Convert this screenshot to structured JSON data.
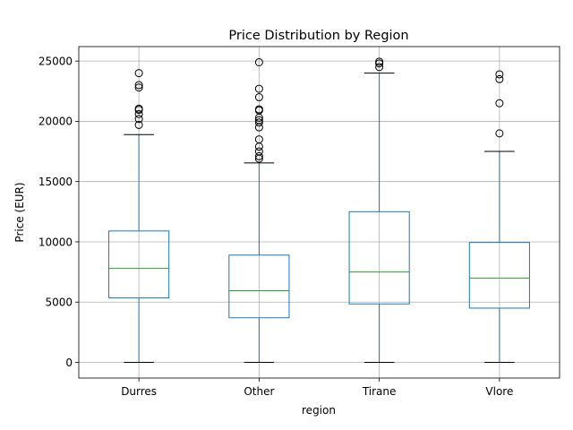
{
  "chart_data": {
    "type": "box",
    "title": "Price Distribution by Region",
    "xlabel": "region",
    "ylabel": "Price (EUR)",
    "ylim": [
      -1300,
      26200
    ],
    "yticks": [
      0,
      5000,
      10000,
      15000,
      20000,
      25000
    ],
    "grid": true,
    "categories": [
      "Durres",
      "Other",
      "Tirane",
      "Vlore"
    ],
    "boxes": [
      {
        "category": "Durres",
        "whisker_low": 0,
        "q1": 5350,
        "median": 7800,
        "q3": 10900,
        "whisker_high": 18900,
        "outliers": [
          19700,
          20200,
          20600,
          20950,
          21050,
          22800,
          23000,
          24000
        ]
      },
      {
        "category": "Other",
        "whisker_low": 0,
        "q1": 3700,
        "median": 5950,
        "q3": 8900,
        "whisker_high": 16550,
        "outliers": [
          16900,
          17100,
          17500,
          17900,
          18500,
          19500,
          19900,
          20100,
          20300,
          20900,
          21000,
          22000,
          22700,
          24900
        ]
      },
      {
        "category": "Tirane",
        "whisker_low": 0,
        "q1": 4850,
        "median": 7500,
        "q3": 12500,
        "whisker_high": 24000,
        "outliers": [
          24500,
          24800,
          24950
        ]
      },
      {
        "category": "Vlore",
        "whisker_low": 0,
        "q1": 4500,
        "median": 7000,
        "q3": 9950,
        "whisker_high": 17500,
        "outliers": [
          19000,
          21500,
          23500,
          23900
        ]
      }
    ],
    "colors": {
      "box": "#1f77b4",
      "median": "#2ca02c",
      "whisker": "#1f77b4",
      "cap": "#000000",
      "flier": "#000000",
      "grid": "#b0b0b0"
    }
  }
}
